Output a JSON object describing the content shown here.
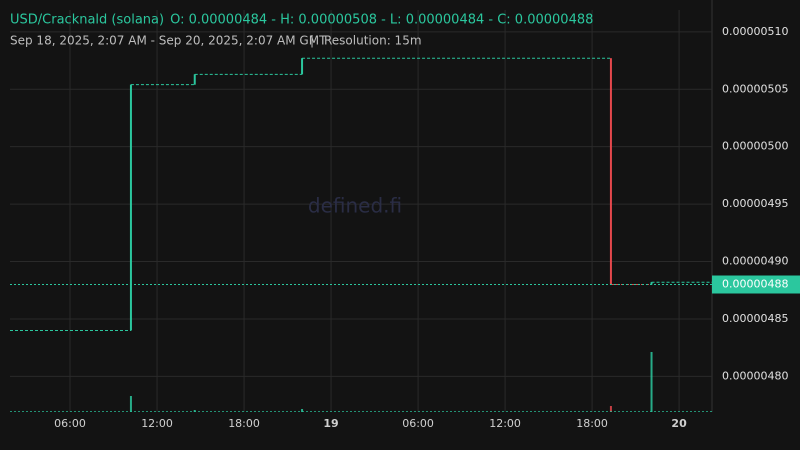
{
  "chart_data": {
    "type": "candlestick",
    "title": "USD/Cracknald (solana)",
    "ohlc_text": "O: 0.00000484 - H: 0.00000508 - L: 0.00000484 - C: 0.00000488",
    "range_text": "Sep 18, 2025, 2:07 AM - Sep 20, 2025, 2:07 AM GMT",
    "separator": "|",
    "resolution": "Resolution: 15m",
    "watermark": "defined.fi",
    "xlim": [
      1.86,
      50.27
    ],
    "xticks": [
      {
        "value": 6,
        "label": "06:00"
      },
      {
        "value": 12,
        "label": "12:00"
      },
      {
        "value": 18,
        "label": "18:00"
      },
      {
        "value": 24,
        "label": "19"
      },
      {
        "value": 30,
        "label": "06:00"
      },
      {
        "value": 36,
        "label": "12:00"
      },
      {
        "value": 42,
        "label": "18:00"
      },
      {
        "value": 48,
        "label": "20"
      }
    ],
    "ylim": [
      4.769e-06,
      5.119e-06
    ],
    "yticks": [
      {
        "value": 4.8e-06,
        "label": "0.00000480"
      },
      {
        "value": 4.85e-06,
        "label": "0.00000485"
      },
      {
        "value": 4.9e-06,
        "label": "0.00000490"
      },
      {
        "value": 4.95e-06,
        "label": "0.00000495"
      },
      {
        "value": 5e-06,
        "label": "0.00000500"
      },
      {
        "value": 5.05e-06,
        "label": "0.00000505"
      },
      {
        "value": 5.1e-06,
        "label": "0.00000510"
      }
    ],
    "grid": true,
    "up_color": "#2bc79e",
    "down_color": "#e5484d",
    "x": [
      10.2,
      14.6,
      22.0,
      43.3,
      46.1
    ],
    "open": [
      4.84e-06,
      5.054e-06,
      5.063e-06,
      5.077e-06,
      4.88e-06
    ],
    "high": [
      5.054e-06,
      5.063e-06,
      5.077e-06,
      5.077e-06,
      4.882e-06
    ],
    "low": [
      4.84e-06,
      5.054e-06,
      5.063e-06,
      4.88e-06,
      4.88e-06
    ],
    "close": [
      5.054e-06,
      5.063e-06,
      5.077e-06,
      4.88e-06,
      4.882e-06
    ],
    "volume": [
      16,
      2,
      3,
      6,
      60
    ],
    "volume_lim": [
      0,
      100
    ],
    "last_price": {
      "value": 4.88e-06,
      "label": "0.00000488"
    }
  }
}
